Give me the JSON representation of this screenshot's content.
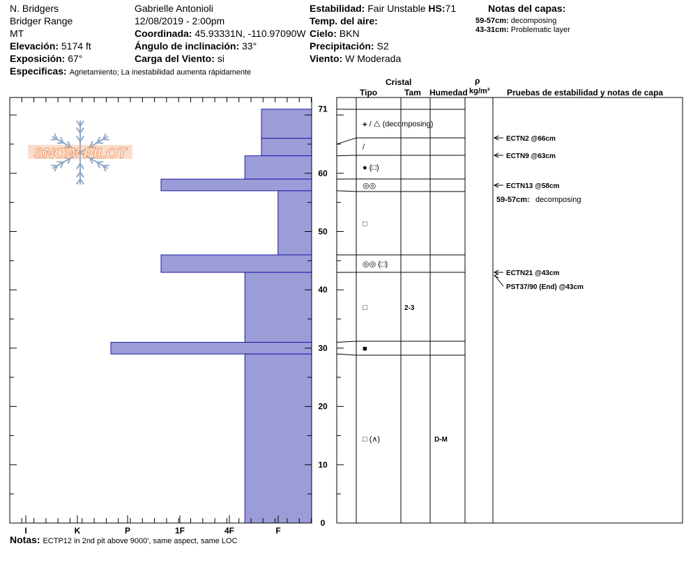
{
  "header": {
    "location": "N. Bridgers",
    "range": "Bridger Range",
    "state": "MT",
    "observer": "Gabrielle Antonioli",
    "datetime": "12/08/2019 - 2:00pm",
    "elevation_label": "Elevación:",
    "elevation_value": "5174 ft",
    "aspect_label": "Exposición:",
    "aspect_value": "67°",
    "specifics_label": "Especificas:",
    "specifics_value": "Agrietamiento;  La inestabilidad aumenta rápidamente",
    "coord_label": "Coordinada:",
    "coord_value": "45.93331N, -110.97090W",
    "slope_label": "Ángulo de inclinación:",
    "slope_value": "33°",
    "wind_loading_label": "Carga del Viento:",
    "wind_loading_value": "si",
    "stability_label": "Estabilidad:",
    "stability_value": "Fair Unstable",
    "hs_label": "HS:",
    "hs_value": "71",
    "air_temp_label": "Temp. del aire:",
    "sky_label": "Cielo:",
    "sky_value": "BKN",
    "precip_label": "Precipitación:",
    "precip_value": "S2",
    "wind_label": "Viento:",
    "wind_value": "W Moderada",
    "layer_notes_title": "Notas del capas:",
    "layer_notes": [
      {
        "range": "59-57cm:",
        "text": "decomposing"
      },
      {
        "range": "43-31cm:",
        "text": "Problematic layer"
      }
    ]
  },
  "logo_text": "SNOW PILOT",
  "hardness_axis": {
    "ticks": [
      "I",
      "K",
      "P",
      "1F",
      "4F",
      "F"
    ],
    "note": "hardness reversed: F (softest) nearest depth axis, I (hardest) at far left"
  },
  "depth_axis": {
    "labels": [
      "71",
      "60",
      "50",
      "40",
      "30",
      "20",
      "10",
      "0"
    ],
    "max_cm": 73,
    "top_label": "71"
  },
  "hardness_profile": [
    {
      "top": 71,
      "bottom": 66,
      "hardness": 1.0
    },
    {
      "top": 66,
      "bottom": 63,
      "hardness": 1.0
    },
    {
      "top": 63,
      "bottom": 59,
      "hardness": 1.33
    },
    {
      "top": 59,
      "bottom": 57,
      "hardness": 3.0
    },
    {
      "top": 57,
      "bottom": 46,
      "hardness": 0.67
    },
    {
      "top": 46,
      "bottom": 43,
      "hardness": 3.0
    },
    {
      "top": 43,
      "bottom": 31,
      "hardness": 1.33
    },
    {
      "top": 31,
      "bottom": 29,
      "hardness": 4.0
    },
    {
      "top": 29,
      "bottom": 0,
      "hardness": 1.33
    }
  ],
  "crystal_header": {
    "cristal": "Cristal",
    "tipo": "Tipo",
    "tam": "Tam",
    "humedad": "Humedad",
    "rho": "ρ",
    "rho_unit": "kg/m³",
    "tests_title": "Pruebas de estabilidad y notas de capa"
  },
  "layers": [
    {
      "top": 71,
      "bottom": 65,
      "tipo": "⚹ / △ (decomposing)",
      "tam": "",
      "humedad": ""
    },
    {
      "top": 65,
      "bottom": 63,
      "tipo": "/",
      "tam": "",
      "humedad": ""
    },
    {
      "top": 63,
      "bottom": 59,
      "tipo": "● (□)",
      "tam": "",
      "humedad": ""
    },
    {
      "top": 59,
      "bottom": 57,
      "tipo": "◎◎",
      "tam": "",
      "humedad": ""
    },
    {
      "top": 57,
      "bottom": 46,
      "tipo": "□",
      "tam": "",
      "humedad": ""
    },
    {
      "top": 46,
      "bottom": 43,
      "tipo": "◎◎ (□)",
      "tam": "",
      "humedad": ""
    },
    {
      "top": 43,
      "bottom": 31,
      "tipo": "□",
      "tam": "2-3",
      "humedad": ""
    },
    {
      "top": 31,
      "bottom": 29,
      "tipo": "■",
      "tam": "",
      "humedad": ""
    },
    {
      "top": 29,
      "bottom": 0,
      "tipo": "□ (∧)",
      "tam": "",
      "humedad": "D-M"
    }
  ],
  "stability_tests": [
    {
      "label": "ECTN2 @66cm",
      "depth": 66,
      "arrow": true
    },
    {
      "label": "ECTN9 @63cm",
      "depth": 63,
      "arrow": true
    },
    {
      "label": "ECTN13 @58cm",
      "depth": 58,
      "arrow": true
    },
    {
      "label": "ECTN21 @43cm",
      "depth": 43,
      "arrow": true
    },
    {
      "label": "PST37/90 (End) @43cm",
      "depth": 43,
      "arrow": true
    }
  ],
  "layer_note_in_panel": {
    "range": "59-57cm:",
    "text": "decomposing"
  },
  "footer": {
    "notes_label": "Notas:",
    "notes_value": "ECTP12 in 2nd pit above 9000', same aspect, same LOC"
  },
  "colors": {
    "profile_fill": "#9c9cd8",
    "profile_stroke": "#1a1aa8",
    "logo_orange": "#f0a070",
    "logo_blue": "#8ea8c8"
  }
}
